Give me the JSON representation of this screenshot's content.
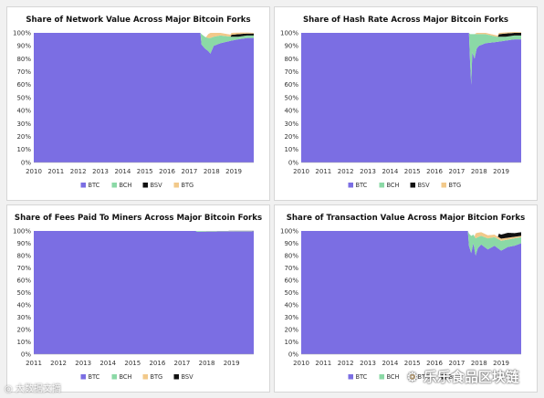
{
  "colors": {
    "BTC": "#7b6ee3",
    "BCH": "#8bd9a6",
    "BSV": "#111111",
    "BTG": "#f2c98a"
  },
  "chart_data": [
    {
      "type": "area",
      "title": "Share of Network Value Across Major Bitcoin Forks",
      "xlabel": "",
      "ylabel": "",
      "x_range": [
        2010,
        2019.9
      ],
      "ylim": [
        0,
        100
      ],
      "x_ticks": [
        "2010",
        "2011",
        "2012",
        "2013",
        "2014",
        "2015",
        "2016",
        "2017",
        "2018",
        "2019"
      ],
      "y_ticks": [
        "0%",
        "10%",
        "20%",
        "30%",
        "40%",
        "50%",
        "60%",
        "70%",
        "80%",
        "90%",
        "100%"
      ],
      "legend": [
        "BTC",
        "BCH",
        "BSV",
        "BTG"
      ],
      "legend_position": "bottom",
      "series": [
        {
          "name": "BTC",
          "x": [
            2010,
            2017.5,
            2017.55,
            2017.7,
            2017.85,
            2017.95,
            2018.1,
            2018.4,
            2018.9,
            2019.2,
            2019.6,
            2019.9
          ],
          "values": [
            100,
            100,
            91,
            88,
            86,
            84,
            90,
            92,
            94,
            95,
            96,
            96
          ]
        },
        {
          "name": "BCH",
          "x": [
            2010,
            2017.5,
            2017.55,
            2017.7,
            2017.85,
            2017.95,
            2018.1,
            2018.4,
            2018.9,
            2019.2,
            2019.6,
            2019.9
          ],
          "values": [
            0,
            0,
            8,
            9,
            10,
            12,
            7,
            6,
            3,
            2,
            2,
            2
          ]
        },
        {
          "name": "BSV",
          "x": [
            2010,
            2018.85,
            2018.9,
            2019.2,
            2019.6,
            2019.9
          ],
          "values": [
            0,
            0,
            1.5,
            2,
            1.5,
            1.5
          ]
        },
        {
          "name": "BTG",
          "x": [
            2010,
            2017.75,
            2017.85,
            2017.95,
            2018.1,
            2018.4,
            2018.9,
            2019.9
          ],
          "values": [
            0,
            0,
            3,
            4,
            3,
            2,
            1.5,
            0.5
          ]
        }
      ]
    },
    {
      "type": "area",
      "title": "Share of Hash Rate Across Major Bitcoin Forks",
      "xlabel": "",
      "ylabel": "",
      "x_range": [
        2010,
        2019.9
      ],
      "ylim": [
        0,
        100
      ],
      "x_ticks": [
        "2010",
        "2011",
        "2012",
        "2013",
        "2014",
        "2015",
        "2016",
        "2017",
        "2018",
        "2019"
      ],
      "y_ticks": [
        "0%",
        "10%",
        "20%",
        "30%",
        "40%",
        "50%",
        "60%",
        "70%",
        "80%",
        "90%",
        "100%"
      ],
      "legend": [
        "BTC",
        "BCH",
        "BSV",
        "BTG"
      ],
      "legend_position": "bottom",
      "series": [
        {
          "name": "BTC",
          "x": [
            2010,
            2017.55,
            2017.6,
            2017.65,
            2017.7,
            2017.8,
            2017.9,
            2018.0,
            2018.3,
            2018.8,
            2019.2,
            2019.6,
            2019.9
          ],
          "values": [
            100,
            100,
            78,
            60,
            85,
            80,
            88,
            90,
            92,
            93,
            94,
            95,
            95
          ]
        },
        {
          "name": "BCH",
          "x": [
            2010,
            2017.55,
            2017.6,
            2017.65,
            2017.7,
            2017.8,
            2017.9,
            2018.0,
            2018.3,
            2018.8,
            2019.2,
            2019.6,
            2019.9
          ],
          "values": [
            0,
            0,
            21,
            39,
            14,
            19,
            11,
            9,
            7,
            4,
            3,
            3,
            3
          ]
        },
        {
          "name": "BSV",
          "x": [
            2010,
            2018.85,
            2018.9,
            2019.2,
            2019.6,
            2019.9
          ],
          "values": [
            0,
            0,
            2,
            2.5,
            2,
            2
          ]
        },
        {
          "name": "BTG",
          "x": [
            2010,
            2017.8,
            2017.9,
            2018.3,
            2018.9,
            2019.9
          ],
          "values": [
            0,
            0,
            1,
            1,
            1,
            0.5
          ]
        }
      ]
    },
    {
      "type": "area",
      "title": "Share of Fees Paid To Miners Across Major Bitcoin Forks",
      "xlabel": "",
      "ylabel": "",
      "x_range": [
        2011,
        2019.9
      ],
      "ylim": [
        0,
        100
      ],
      "x_ticks": [
        "2011",
        "2012",
        "2013",
        "2014",
        "2015",
        "2016",
        "2017",
        "2018",
        "2019"
      ],
      "y_ticks": [
        "0%",
        "10%",
        "20%",
        "30%",
        "40%",
        "50%",
        "60%",
        "70%",
        "80%",
        "90%",
        "100%"
      ],
      "legend": [
        "BTC",
        "BCH",
        "BTG",
        "BSV"
      ],
      "legend_position": "bottom",
      "series": [
        {
          "name": "BTC",
          "x": [
            2011,
            2017.55,
            2017.6,
            2018.0,
            2018.5,
            2019.0,
            2019.5,
            2019.9
          ],
          "values": [
            100,
            100,
            99.3,
            99.5,
            99.6,
            99.7,
            99.6,
            99.7
          ]
        },
        {
          "name": "BCH",
          "x": [
            2011,
            2017.55,
            2017.6,
            2018.0,
            2018.5,
            2019.0,
            2019.5,
            2019.9
          ],
          "values": [
            0,
            0,
            0.6,
            0.4,
            0.3,
            0.2,
            0.3,
            0.2
          ]
        },
        {
          "name": "BTG",
          "x": [
            2011,
            2017.8,
            2017.9,
            2019.9
          ],
          "values": [
            0,
            0,
            0.1,
            0.05
          ]
        },
        {
          "name": "BSV",
          "x": [
            2011,
            2018.85,
            2018.9,
            2019.9
          ],
          "values": [
            0,
            0,
            0.1,
            0.1
          ]
        }
      ]
    },
    {
      "type": "area",
      "title": "Share of Transaction Value Across Major Bitcion Forks",
      "xlabel": "",
      "ylabel": "",
      "x_range": [
        2010,
        2019.9
      ],
      "ylim": [
        0,
        100
      ],
      "x_ticks": [
        "2010",
        "2011",
        "2012",
        "2013",
        "2014",
        "2015",
        "2016",
        "2017",
        "2018",
        "2019"
      ],
      "y_ticks": [
        "0%",
        "10%",
        "20%",
        "30%",
        "40%",
        "50%",
        "60%",
        "70%",
        "80%",
        "90%",
        "100%"
      ],
      "legend": [
        "BTC",
        "BCH",
        "BTG",
        "BSV"
      ],
      "legend_position": "bottom",
      "series": [
        {
          "name": "BTC",
          "x": [
            2010,
            2017.5,
            2017.55,
            2017.65,
            2017.75,
            2017.85,
            2017.95,
            2018.1,
            2018.4,
            2018.7,
            2019.0,
            2019.3,
            2019.6,
            2019.9
          ],
          "values": [
            100,
            100,
            88,
            82,
            90,
            80,
            86,
            89,
            85,
            88,
            84,
            87,
            88,
            90
          ]
        },
        {
          "name": "BCH",
          "x": [
            2010,
            2017.5,
            2017.55,
            2017.65,
            2017.75,
            2017.85,
            2017.95,
            2018.1,
            2018.4,
            2018.7,
            2019.0,
            2019.3,
            2019.6,
            2019.9
          ],
          "values": [
            0,
            0,
            10,
            14,
            7,
            14,
            9,
            7,
            9,
            7,
            8,
            6,
            6,
            5
          ]
        },
        {
          "name": "BTG",
          "x": [
            2010,
            2017.8,
            2017.85,
            2018.1,
            2018.7,
            2019.9
          ],
          "values": [
            0,
            0,
            4,
            3,
            2,
            1
          ]
        },
        {
          "name": "BSV",
          "x": [
            2010,
            2018.85,
            2018.9,
            2019.3,
            2019.6,
            2019.9
          ],
          "values": [
            0,
            0,
            3,
            4,
            3,
            3
          ]
        }
      ]
    }
  ],
  "watermarks": {
    "left": "大数据文摘",
    "right": "乐乐食品区块链"
  }
}
